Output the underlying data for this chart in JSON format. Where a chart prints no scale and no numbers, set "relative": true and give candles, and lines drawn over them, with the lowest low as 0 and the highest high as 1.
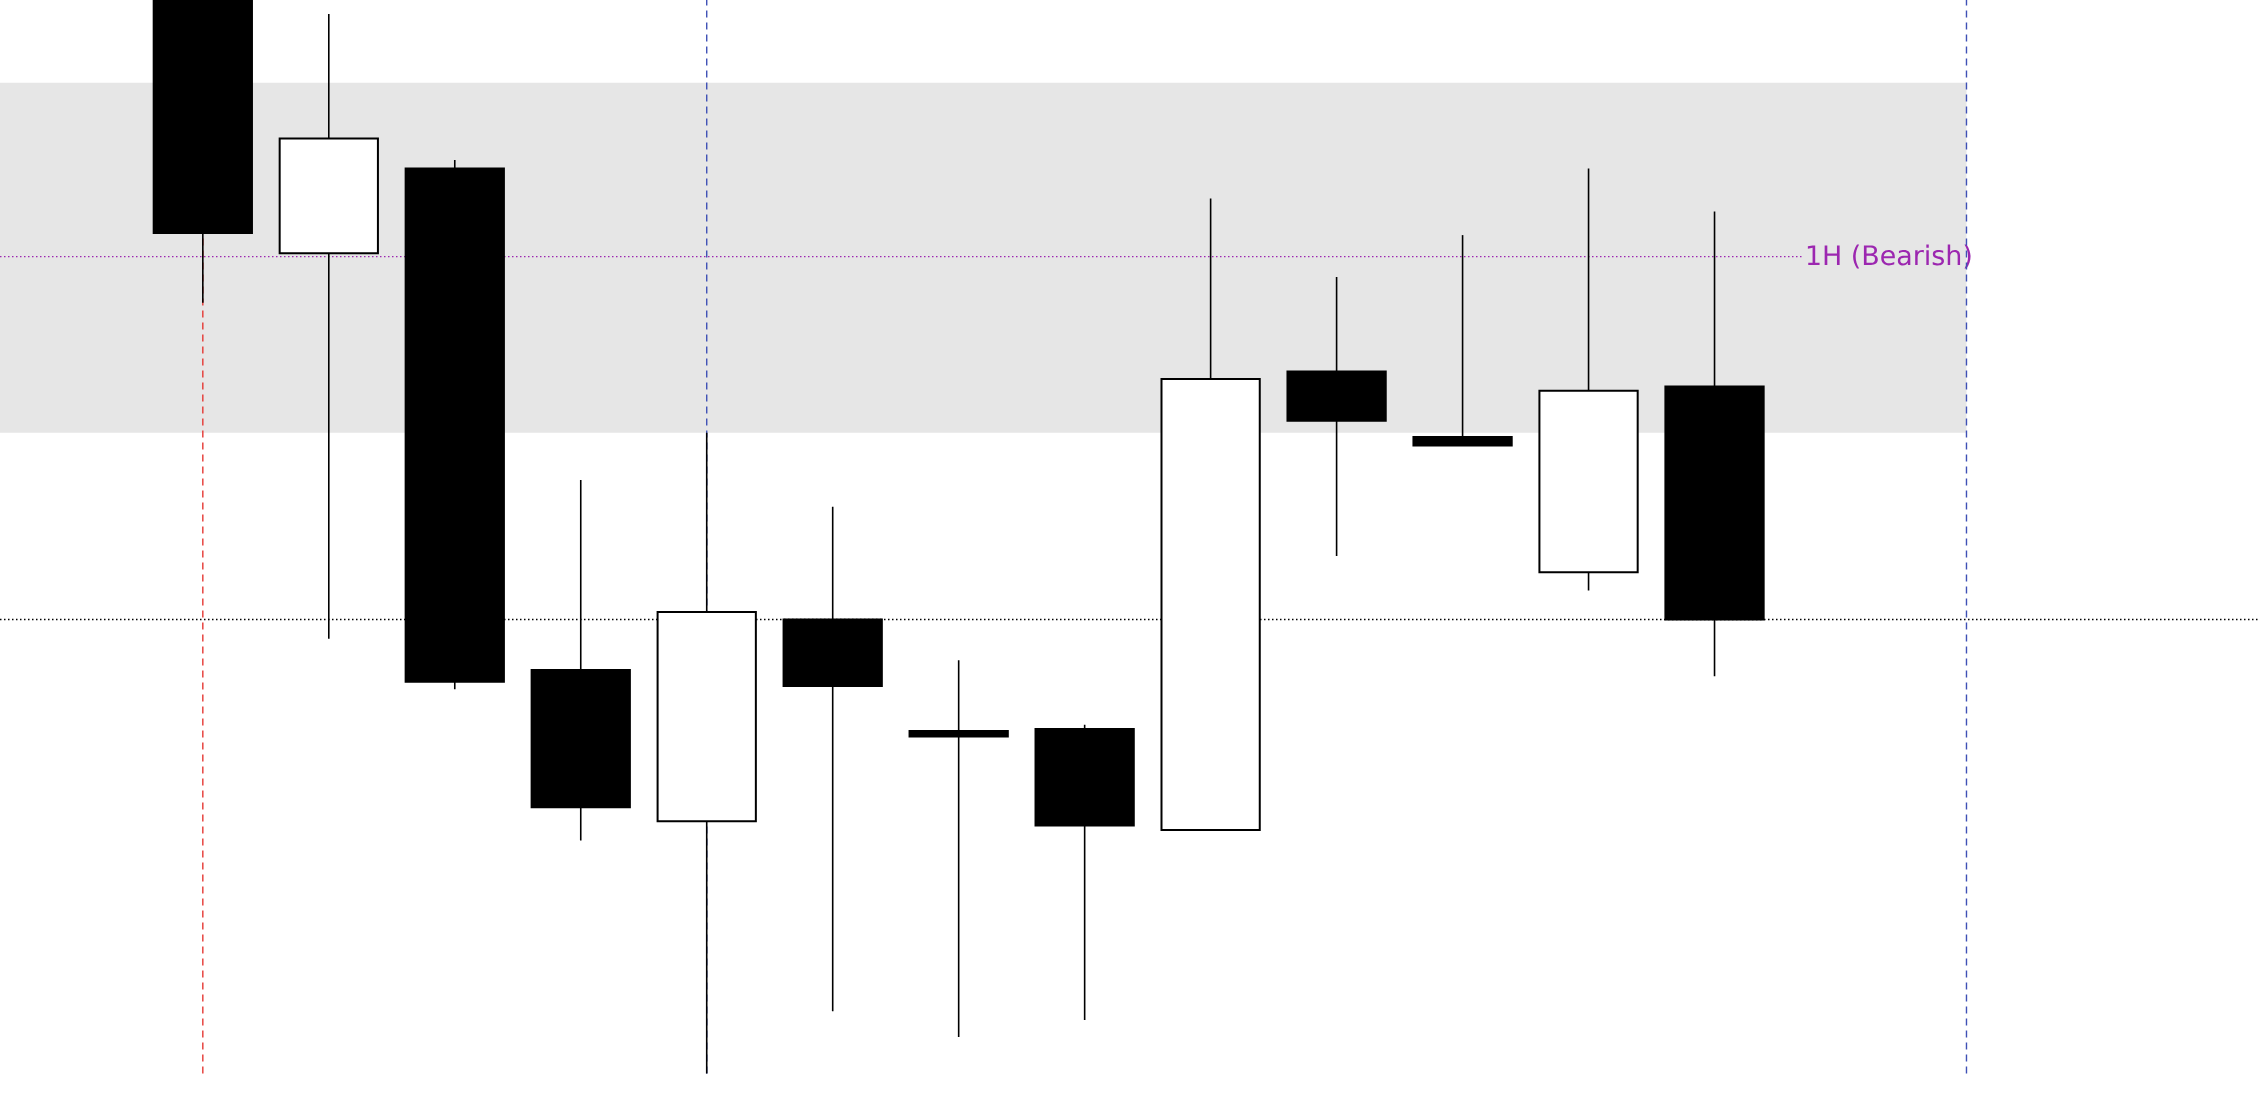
{
  "chart_data": {
    "type": "candlestick",
    "relative": true,
    "categories": [
      null,
      null,
      null,
      null,
      null,
      null,
      null,
      null,
      null,
      null,
      null,
      null,
      null
    ],
    "ohlc": [
      [
        1.0,
        1.0,
        0.718,
        0.783
      ],
      [
        0.764,
        0.987,
        0.405,
        0.871
      ],
      [
        0.843,
        0.851,
        0.358,
        0.365
      ],
      [
        0.376,
        0.553,
        0.217,
        0.248
      ],
      [
        0.235,
        0.597,
        0.0,
        0.43
      ],
      [
        0.423,
        0.528,
        0.058,
        0.361
      ],
      [
        0.319,
        0.385,
        0.034,
        0.314
      ],
      [
        0.321,
        0.325,
        0.05,
        0.231
      ],
      [
        0.227,
        0.815,
        0.227,
        0.647
      ],
      [
        0.654,
        0.742,
        0.482,
        0.608
      ],
      [
        0.593,
        0.781,
        0.585,
        0.585
      ],
      [
        0.467,
        0.843,
        0.45,
        0.636
      ],
      [
        0.64,
        0.803,
        0.37,
        0.423
      ]
    ],
    "bands": [
      {
        "axis": "y",
        "from": 0.597,
        "to": 0.923,
        "color": "#e6e6e6"
      }
    ],
    "ref_lines": [
      {
        "axis": "y",
        "value": 0.423,
        "color": "#000000",
        "line_style": "dotted"
      },
      {
        "axis": "y",
        "value": 0.761,
        "label": "1H (Bearish)",
        "color": "#9c27b0",
        "line_style": "dotted"
      }
    ]
  }
}
